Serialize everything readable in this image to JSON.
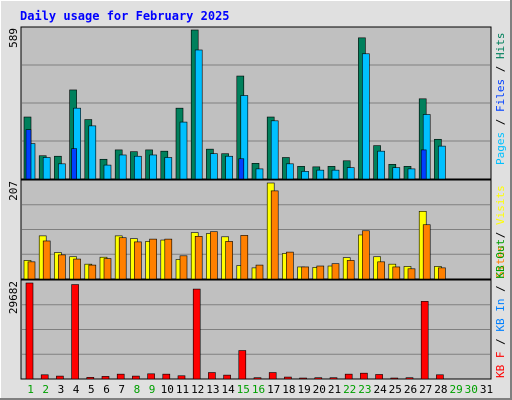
{
  "chart_data": [
    {
      "type": "bar",
      "title": "Daily usage for February 2025",
      "panel": "top",
      "ylabel_parts": [
        "Pages",
        "Files",
        "Hits"
      ],
      "ymax_label": "589",
      "ylim": [
        0,
        589
      ],
      "categories": [
        "1",
        "2",
        "3",
        "4",
        "5",
        "6",
        "7",
        "8",
        "9",
        "10",
        "11",
        "12",
        "13",
        "14",
        "15",
        "16",
        "17",
        "18",
        "19",
        "20",
        "21",
        "22",
        "23",
        "24",
        "25",
        "26",
        "27",
        "28",
        "29",
        "30",
        "31"
      ],
      "series": [
        {
          "name": "Hits",
          "values": [
            245,
            92,
            90,
            352,
            235,
            78,
            115,
            108,
            115,
            110,
            280,
            589,
            118,
            100,
            407,
            62,
            245,
            85,
            50,
            48,
            50,
            72,
            558,
            132,
            58,
            50,
            317,
            157,
            0,
            0,
            0
          ]
        },
        {
          "name": "Files",
          "values": [
            140,
            85,
            60,
            280,
            210,
            55,
            95,
            90,
            95,
            85,
            225,
            510,
            100,
            90,
            330,
            40,
            230,
            60,
            30,
            35,
            35,
            45,
            495,
            110,
            45,
            40,
            255,
            130,
            0,
            0,
            0
          ]
        },
        {
          "name": "Pages",
          "values": [
            195,
            0,
            0,
            120,
            0,
            0,
            0,
            0,
            0,
            0,
            0,
            0,
            0,
            0,
            80,
            0,
            0,
            0,
            0,
            0,
            0,
            0,
            0,
            0,
            0,
            0,
            115,
            0,
            0,
            0,
            0
          ]
        }
      ]
    },
    {
      "type": "bar",
      "panel": "middle",
      "ylabel_parts": [
        "Visits",
        "Sites"
      ],
      "ymax_label": "207",
      "ylim": [
        0,
        207
      ],
      "categories": [
        "1",
        "2",
        "3",
        "4",
        "5",
        "6",
        "7",
        "8",
        "9",
        "10",
        "11",
        "12",
        "13",
        "14",
        "15",
        "16",
        "17",
        "18",
        "19",
        "20",
        "21",
        "22",
        "23",
        "24",
        "25",
        "26",
        "27",
        "28",
        "29",
        "30",
        "31"
      ],
      "series": [
        {
          "name": "Visits",
          "values": [
            40,
            93,
            57,
            48,
            32,
            47,
            93,
            87,
            81,
            84,
            42,
            100,
            98,
            91,
            29,
            24,
            207,
            55,
            26,
            25,
            28,
            46,
            95,
            48,
            32,
            27,
            146,
            27,
            0,
            0,
            0
          ]
        },
        {
          "name": "Sites",
          "values": [
            37,
            82,
            52,
            43,
            30,
            44,
            89,
            80,
            86,
            86,
            50,
            92,
            102,
            81,
            94,
            30,
            190,
            58,
            26,
            28,
            33,
            40,
            104,
            37,
            26,
            22,
            117,
            24,
            0,
            0,
            0
          ]
        }
      ]
    },
    {
      "type": "bar",
      "panel": "bottom",
      "ylabel_parts": [
        "KB Out",
        "KB In",
        "KB F"
      ],
      "ymax_label": "29682",
      "ylim": [
        0,
        29682
      ],
      "categories": [
        "1",
        "2",
        "3",
        "4",
        "5",
        "6",
        "7",
        "8",
        "9",
        "10",
        "11",
        "12",
        "13",
        "14",
        "15",
        "16",
        "17",
        "18",
        "19",
        "20",
        "21",
        "22",
        "23",
        "24",
        "25",
        "26",
        "27",
        "28",
        "29",
        "30",
        "31"
      ],
      "series": [
        {
          "name": "KB F",
          "values": [
            29682,
            1300,
            900,
            29200,
            500,
            800,
            1500,
            900,
            1600,
            1500,
            1000,
            27800,
            2000,
            1200,
            8800,
            400,
            2000,
            600,
            300,
            400,
            400,
            1500,
            1800,
            1400,
            300,
            400,
            24000,
            1300,
            0,
            0,
            0
          ]
        }
      ]
    }
  ],
  "colors": {
    "hits": "#00805c",
    "files": "#00c0ff",
    "pages": "#0040ff",
    "visits": "#ffff00",
    "sites": "#ff8000",
    "kbytes": "#ff0000",
    "title": "#0000ff",
    "panel_bg": "#c0c0c0",
    "frame_bg": "#e0e0e0",
    "weekend_label": "#00a000"
  },
  "weekend_days": [
    1,
    2,
    8,
    9,
    15,
    16,
    22,
    23,
    29,
    30
  ]
}
